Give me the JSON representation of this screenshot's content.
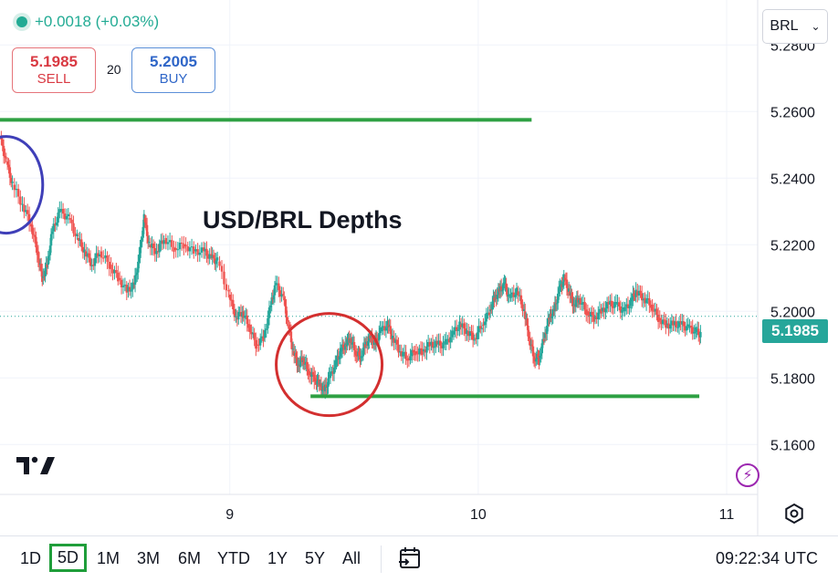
{
  "header": {
    "change": "+0.0018 (+0.03%)",
    "sell": {
      "price": "5.1985",
      "label": "SELL"
    },
    "spread": "20",
    "buy": {
      "price": "5.2005",
      "label": "BUY"
    },
    "currency": "BRL"
  },
  "annotation_title": "USD/BRL Depths",
  "current_price": "5.1985",
  "timeframes": [
    "1D",
    "5D",
    "1M",
    "3M",
    "6M",
    "YTD",
    "1Y",
    "5Y",
    "All"
  ],
  "active_timeframe": "5D",
  "clock": "09:22:34 UTC",
  "colors": {
    "up": "#26a69a",
    "down": "#ef5350",
    "level": "#2ea043",
    "circle_red": "#d32f2f",
    "circle_blue": "#3f3fb8"
  },
  "chart_data": {
    "type": "line",
    "title": "USD/BRL Depths",
    "x_ticks": [
      "9",
      "10",
      "11"
    ],
    "x_tick_positions": [
      1.85,
      3.85,
      5.85
    ],
    "ylim": [
      5.145,
      5.2935
    ],
    "y_ticks": [
      "5.2800",
      "5.2600",
      "5.2400",
      "5.2200",
      "5.2000",
      "5.1800",
      "5.1600"
    ],
    "y_tick_values": [
      5.28,
      5.26,
      5.24,
      5.22,
      5.2,
      5.18,
      5.16
    ],
    "xlim": [
      0,
      6.1
    ],
    "current_price": 5.1985,
    "series": [
      {
        "values": [
          [
            0.0,
            5.252
          ],
          [
            0.05,
            5.245
          ],
          [
            0.1,
            5.238
          ],
          [
            0.18,
            5.232
          ],
          [
            0.25,
            5.226
          ],
          [
            0.3,
            5.218
          ],
          [
            0.34,
            5.21
          ],
          [
            0.38,
            5.214
          ],
          [
            0.42,
            5.224
          ],
          [
            0.48,
            5.23
          ],
          [
            0.55,
            5.228
          ],
          [
            0.62,
            5.222
          ],
          [
            0.68,
            5.218
          ],
          [
            0.74,
            5.214
          ],
          [
            0.8,
            5.218
          ],
          [
            0.88,
            5.214
          ],
          [
            0.95,
            5.21
          ],
          [
            1.02,
            5.206
          ],
          [
            1.08,
            5.208
          ],
          [
            1.12,
            5.216
          ],
          [
            1.16,
            5.228
          ],
          [
            1.2,
            5.22
          ],
          [
            1.26,
            5.218
          ],
          [
            1.32,
            5.222
          ],
          [
            1.4,
            5.219
          ],
          [
            1.48,
            5.22
          ],
          [
            1.56,
            5.218
          ],
          [
            1.64,
            5.218
          ],
          [
            1.7,
            5.216
          ],
          [
            1.75,
            5.215
          ],
          [
            1.84,
            5.205
          ],
          [
            1.9,
            5.198
          ],
          [
            1.95,
            5.2
          ],
          [
            2.0,
            5.196
          ],
          [
            2.06,
            5.19
          ],
          [
            2.12,
            5.192
          ],
          [
            2.18,
            5.202
          ],
          [
            2.22,
            5.208
          ],
          [
            2.28,
            5.204
          ],
          [
            2.32,
            5.196
          ],
          [
            2.36,
            5.188
          ],
          [
            2.4,
            5.184
          ],
          [
            2.44,
            5.186
          ],
          [
            2.48,
            5.182
          ],
          [
            2.53,
            5.18
          ],
          [
            2.57,
            5.178
          ],
          [
            2.61,
            5.176
          ],
          [
            2.65,
            5.18
          ],
          [
            2.7,
            5.184
          ],
          [
            2.74,
            5.188
          ],
          [
            2.78,
            5.19
          ],
          [
            2.82,
            5.192
          ],
          [
            2.86,
            5.188
          ],
          [
            2.9,
            5.186
          ],
          [
            2.94,
            5.19
          ],
          [
            2.98,
            5.192
          ],
          [
            3.02,
            5.19
          ],
          [
            3.06,
            5.194
          ],
          [
            3.12,
            5.196
          ],
          [
            3.16,
            5.192
          ],
          [
            3.22,
            5.188
          ],
          [
            3.28,
            5.186
          ],
          [
            3.34,
            5.188
          ],
          [
            3.4,
            5.188
          ],
          [
            3.46,
            5.19
          ],
          [
            3.52,
            5.19
          ],
          [
            3.58,
            5.19
          ],
          [
            3.64,
            5.193
          ],
          [
            3.7,
            5.196
          ],
          [
            3.76,
            5.194
          ],
          [
            3.82,
            5.192
          ],
          [
            3.88,
            5.196
          ],
          [
            3.94,
            5.2
          ],
          [
            3.98,
            5.204
          ],
          [
            4.02,
            5.206
          ],
          [
            4.06,
            5.208
          ],
          [
            4.1,
            5.204
          ],
          [
            4.16,
            5.206
          ],
          [
            4.22,
            5.2
          ],
          [
            4.26,
            5.192
          ],
          [
            4.3,
            5.186
          ],
          [
            4.34,
            5.186
          ],
          [
            4.38,
            5.192
          ],
          [
            4.42,
            5.198
          ],
          [
            4.46,
            5.2
          ],
          [
            4.5,
            5.206
          ],
          [
            4.54,
            5.21
          ],
          [
            4.58,
            5.206
          ],
          [
            4.62,
            5.202
          ],
          [
            4.66,
            5.204
          ],
          [
            4.72,
            5.2
          ],
          [
            4.78,
            5.198
          ],
          [
            4.84,
            5.2
          ],
          [
            4.9,
            5.202
          ],
          [
            4.96,
            5.202
          ],
          [
            5.02,
            5.2
          ],
          [
            5.08,
            5.203
          ],
          [
            5.12,
            5.206
          ],
          [
            5.18,
            5.204
          ],
          [
            5.24,
            5.202
          ],
          [
            5.3,
            5.198
          ],
          [
            5.36,
            5.196
          ],
          [
            5.42,
            5.196
          ],
          [
            5.48,
            5.196
          ],
          [
            5.54,
            5.195
          ],
          [
            5.6,
            5.194
          ],
          [
            5.64,
            5.193
          ]
        ]
      }
    ]
  }
}
